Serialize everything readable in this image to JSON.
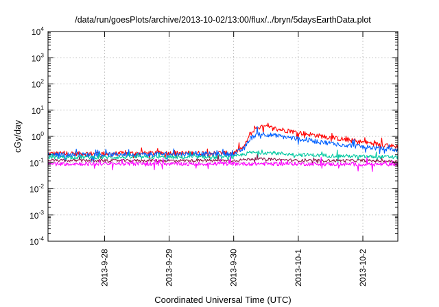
{
  "chart_data": {
    "type": "line",
    "title": "/data/run/goesPlots/archive/2013-10-02/13:00/flux/../bryn/5daysEarthData.plot",
    "xlabel": "Coordinated Universal Time (UTC)",
    "ylabel": "cGy/day",
    "yscale": "log",
    "ylim": [
      0.0001,
      10000
    ],
    "xlim": [
      "2013-09-27 03:00",
      "2013-10-02 13:00"
    ],
    "grid": true,
    "x_ticks": [
      "2013-9-28",
      "2013-9-29",
      "2013-9-30",
      "2013-10-1",
      "2013-10-2"
    ],
    "y_ticks": [
      {
        "base": "10",
        "exp": "-4"
      },
      {
        "base": "10",
        "exp": "-3"
      },
      {
        "base": "10",
        "exp": "-2"
      },
      {
        "base": "10",
        "exp": "-1"
      },
      {
        "base": "10",
        "exp": "0"
      },
      {
        "base": "10",
        "exp": "1"
      },
      {
        "base": "10",
        "exp": "2"
      },
      {
        "base": "10",
        "exp": "3"
      },
      {
        "base": "10",
        "exp": "4"
      }
    ],
    "series": [
      {
        "color": "#ff0000",
        "x": [
          "2013-09-27 03:00",
          "2013-09-28 00:00",
          "2013-09-29 00:00",
          "2013-09-30 00:00",
          "2013-09-30 04:00",
          "2013-09-30 06:00",
          "2013-09-30 09:00",
          "2013-09-30 12:00",
          "2013-10-01 00:00",
          "2013-10-01 12:00",
          "2013-10-02 00:00",
          "2013-10-02 13:00"
        ],
        "values": [
          0.22,
          0.22,
          0.23,
          0.23,
          0.4,
          1.2,
          2.2,
          2.3,
          1.4,
          0.9,
          0.6,
          0.4
        ]
      },
      {
        "color": "#0060ff",
        "x": [
          "2013-09-27 03:00",
          "2013-09-28 00:00",
          "2013-09-29 00:00",
          "2013-09-30 00:00",
          "2013-09-30 04:00",
          "2013-09-30 06:00",
          "2013-09-30 09:00",
          "2013-09-30 12:00",
          "2013-10-01 00:00",
          "2013-10-01 12:00",
          "2013-10-02 00:00",
          "2013-10-02 13:00"
        ],
        "values": [
          0.2,
          0.2,
          0.21,
          0.21,
          0.35,
          0.8,
          1.3,
          1.2,
          0.8,
          0.55,
          0.4,
          0.3
        ]
      },
      {
        "color": "#00c8a0",
        "x": [
          "2013-09-27 03:00",
          "2013-09-28 00:00",
          "2013-09-29 00:00",
          "2013-09-30 00:00",
          "2013-09-30 06:00",
          "2013-09-30 12:00",
          "2013-10-01 00:00",
          "2013-10-02 00:00",
          "2013-10-02 13:00"
        ],
        "values": [
          0.16,
          0.16,
          0.16,
          0.16,
          0.24,
          0.24,
          0.2,
          0.17,
          0.16
        ]
      },
      {
        "color": "#8b1a4a",
        "x": [
          "2013-09-27 03:00",
          "2013-09-28 00:00",
          "2013-09-29 00:00",
          "2013-09-30 00:00",
          "2013-09-30 08:00",
          "2013-10-01 00:00",
          "2013-10-02 00:00",
          "2013-10-02 13:00"
        ],
        "values": [
          0.12,
          0.12,
          0.12,
          0.12,
          0.14,
          0.12,
          0.12,
          0.11
        ]
      },
      {
        "color": "#ff00ff",
        "x": [
          "2013-09-27 03:00",
          "2013-09-28 00:00",
          "2013-09-29 00:00",
          "2013-09-30 00:00",
          "2013-10-01 00:00",
          "2013-10-02 00:00",
          "2013-10-02 13:00"
        ],
        "values": [
          0.09,
          0.09,
          0.09,
          0.09,
          0.09,
          0.085,
          0.085
        ]
      }
    ]
  }
}
